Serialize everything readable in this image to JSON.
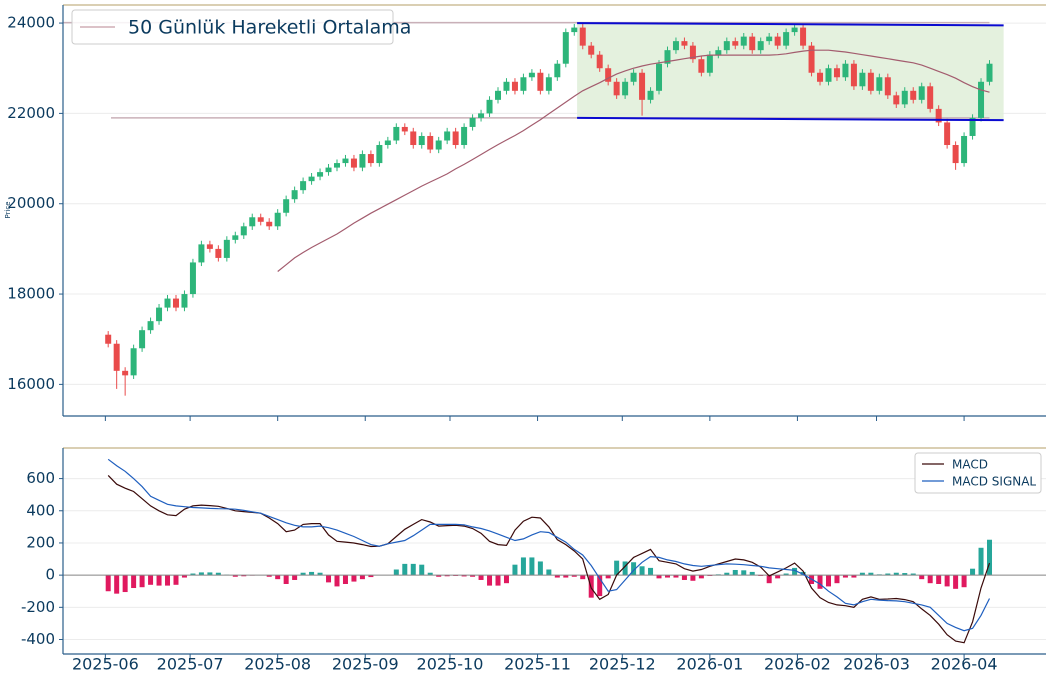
{
  "chart_data": [
    {
      "type": "candlestick",
      "ylabel": "Price",
      "x": [
        1,
        4,
        7,
        10,
        13,
        16,
        19,
        22,
        25,
        28,
        31,
        34,
        37,
        40,
        43,
        46,
        49,
        52,
        55,
        58,
        61,
        64,
        67,
        70,
        73,
        76,
        79,
        82,
        85,
        88,
        91,
        94,
        97,
        100,
        103,
        106,
        109,
        112,
        115,
        118,
        121,
        124,
        127,
        130,
        133,
        136,
        139,
        142,
        145,
        148,
        151,
        154,
        157,
        160,
        163,
        166,
        169,
        172,
        175,
        178,
        181,
        184,
        187,
        190,
        193,
        196,
        199,
        202,
        205,
        208,
        211,
        214,
        217,
        220,
        223,
        226,
        229,
        232,
        235,
        238,
        241,
        244,
        247,
        250,
        253,
        256,
        259,
        262,
        265,
        268,
        271,
        274,
        277,
        280,
        283,
        286,
        289,
        292,
        295,
        298,
        301,
        304,
        307,
        310,
        313
      ],
      "open": [
        17100,
        16900,
        16300,
        16200,
        16800,
        17200,
        17400,
        17700,
        17900,
        17700,
        18000,
        18700,
        19100,
        19000,
        18800,
        19200,
        19300,
        19500,
        19700,
        19600,
        19500,
        19800,
        20100,
        20300,
        20500,
        20600,
        20700,
        20800,
        20900,
        21000,
        20800,
        21100,
        20900,
        21300,
        21400,
        21700,
        21600,
        21300,
        21500,
        21200,
        21400,
        21600,
        21300,
        21700,
        21900,
        22000,
        22300,
        22500,
        22700,
        22500,
        22800,
        22900,
        22500,
        22800,
        23100,
        23800,
        23900,
        23500,
        23300,
        23000,
        22700,
        22400,
        22700,
        22900,
        22300,
        22500,
        23100,
        23400,
        23600,
        23500,
        23200,
        22900,
        23300,
        23400,
        23600,
        23500,
        23700,
        23400,
        23600,
        23700,
        23500,
        23800,
        23900,
        23500,
        22900,
        22700,
        23000,
        22800,
        23100,
        22600,
        22900,
        22500,
        22800,
        22400,
        22200,
        22500,
        22300,
        22600,
        22100,
        21800,
        21300,
        20900,
        21500,
        21900,
        22700
      ],
      "high": [
        17180,
        16980,
        16380,
        16880,
        17280,
        17480,
        17780,
        17980,
        17980,
        18080,
        18780,
        19180,
        19180,
        19080,
        19280,
        19380,
        19580,
        19780,
        19780,
        19680,
        19880,
        20180,
        20380,
        20580,
        20680,
        20780,
        20880,
        20980,
        21080,
        21080,
        21180,
        21180,
        21380,
        21480,
        21780,
        21780,
        21680,
        21580,
        21580,
        21480,
        21680,
        21680,
        21780,
        21980,
        22080,
        22380,
        22580,
        22780,
        22780,
        22880,
        22980,
        22980,
        22880,
        23180,
        23880,
        23980,
        23980,
        23580,
        23380,
        23080,
        22780,
        22780,
        22980,
        22980,
        22580,
        23180,
        23480,
        23680,
        23680,
        23580,
        23280,
        23380,
        23480,
        23680,
        23680,
        23780,
        23780,
        23680,
        23780,
        23780,
        23880,
        23980,
        23980,
        23580,
        22980,
        23080,
        23080,
        23180,
        23180,
        22980,
        22980,
        22880,
        22880,
        22480,
        22580,
        22580,
        22680,
        22680,
        22180,
        21880,
        21380,
        21580,
        21980,
        22780,
        23180
      ],
      "low": [
        16820,
        15900,
        15750,
        16120,
        16720,
        17120,
        17320,
        17620,
        17620,
        17620,
        17920,
        18620,
        18920,
        18720,
        18720,
        19120,
        19220,
        19420,
        19520,
        19420,
        19420,
        19720,
        20020,
        20220,
        20420,
        20520,
        20620,
        20720,
        20820,
        20720,
        20720,
        20820,
        20820,
        21220,
        21320,
        21520,
        21220,
        21220,
        21120,
        21120,
        21320,
        21220,
        21220,
        21620,
        21820,
        21920,
        22220,
        22420,
        22420,
        22420,
        22720,
        22420,
        22420,
        22720,
        23020,
        23720,
        23420,
        23220,
        22920,
        22620,
        22320,
        22320,
        22620,
        21950,
        22220,
        22420,
        23020,
        23320,
        23420,
        23120,
        22820,
        22820,
        23220,
        23320,
        23420,
        23420,
        23320,
        23320,
        23520,
        23420,
        23420,
        23720,
        23420,
        22820,
        22620,
        22620,
        22720,
        22720,
        22520,
        22520,
        22420,
        22420,
        22320,
        22120,
        22120,
        22220,
        22220,
        22020,
        21720,
        21220,
        20750,
        20820,
        21420,
        21820,
        22620
      ],
      "close": [
        16900,
        16300,
        16200,
        16800,
        17200,
        17400,
        17700,
        17900,
        17700,
        18000,
        18700,
        19100,
        19000,
        18800,
        19200,
        19300,
        19500,
        19700,
        19600,
        19500,
        19800,
        20100,
        20300,
        20500,
        20600,
        20700,
        20800,
        20900,
        21000,
        20800,
        21100,
        20900,
        21300,
        21400,
        21700,
        21600,
        21300,
        21500,
        21200,
        21400,
        21600,
        21300,
        21700,
        21900,
        22000,
        22300,
        22500,
        22700,
        22500,
        22800,
        22900,
        22500,
        22800,
        23100,
        23800,
        23900,
        23500,
        23300,
        23000,
        22700,
        22400,
        22700,
        22900,
        22300,
        22500,
        23100,
        23400,
        23600,
        23500,
        23200,
        22900,
        23300,
        23400,
        23600,
        23500,
        23700,
        23400,
        23600,
        23700,
        23500,
        23800,
        23900,
        23500,
        22900,
        22700,
        23000,
        22800,
        23100,
        22600,
        22900,
        22500,
        22800,
        22400,
        22200,
        22500,
        22300,
        22600,
        22100,
        21800,
        21300,
        20900,
        21500,
        21900,
        22700,
        23100
      ],
      "up_color": "#2db57a",
      "down_color": "#e94b4b",
      "series": [
        {
          "name": "50 Günlük Hareketli Ortalama",
          "color": "#a35c6e",
          "values": [
            null,
            null,
            null,
            null,
            null,
            null,
            null,
            null,
            null,
            null,
            null,
            null,
            null,
            null,
            null,
            null,
            null,
            null,
            null,
            null,
            18500,
            18650,
            18800,
            18920,
            19030,
            19130,
            19230,
            19330,
            19450,
            19570,
            19680,
            19790,
            19890,
            19990,
            20090,
            20190,
            20290,
            20390,
            20480,
            20570,
            20660,
            20770,
            20870,
            20980,
            21090,
            21200,
            21310,
            21410,
            21510,
            21620,
            21740,
            21860,
            21990,
            22120,
            22250,
            22380,
            22500,
            22590,
            22680,
            22780,
            22870,
            22940,
            23000,
            23050,
            23090,
            23120,
            23150,
            23180,
            23210,
            23240,
            23270,
            23290,
            23290,
            23290,
            23290,
            23290,
            23290,
            23290,
            23290,
            23300,
            23320,
            23350,
            23380,
            23400,
            23400,
            23400,
            23380,
            23360,
            23330,
            23300,
            23270,
            23240,
            23210,
            23180,
            23150,
            23120,
            23070,
            23000,
            22930,
            22860,
            22780,
            22680,
            22590,
            22520,
            22470
          ]
        }
      ],
      "hlines": [
        {
          "y": 24010,
          "x": [
            -15,
            313
          ],
          "color": "#c9b0b8"
        },
        {
          "y": 21900,
          "x": [
            2,
            313
          ],
          "color": "#c9b0b8"
        }
      ],
      "channel": {
        "x": [
          167,
          318
        ],
        "upper": [
          24000,
          23950
        ],
        "lower": [
          21900,
          21850
        ],
        "color": "#0a0ad0",
        "fill": "#dfeed8"
      },
      "xlim": [
        -15,
        333
      ],
      "xticks": [
        0,
        30,
        61,
        92,
        122,
        153,
        183,
        214,
        245,
        273,
        304
      ],
      "ylim": [
        15300,
        24400
      ],
      "yticks": [
        16000,
        18000,
        20000,
        22000,
        24000
      ],
      "grid": true
    },
    {
      "type": "macd",
      "x": [
        1,
        4,
        7,
        10,
        13,
        16,
        19,
        22,
        25,
        28,
        31,
        34,
        37,
        40,
        43,
        46,
        49,
        52,
        55,
        58,
        61,
        64,
        67,
        70,
        73,
        76,
        79,
        82,
        85,
        88,
        91,
        94,
        97,
        100,
        103,
        106,
        109,
        112,
        115,
        118,
        121,
        124,
        127,
        130,
        133,
        136,
        139,
        142,
        145,
        148,
        151,
        154,
        157,
        160,
        163,
        166,
        169,
        172,
        175,
        178,
        181,
        184,
        187,
        190,
        193,
        196,
        199,
        202,
        205,
        208,
        211,
        214,
        217,
        220,
        223,
        226,
        229,
        232,
        235,
        238,
        241,
        244,
        247,
        250,
        253,
        256,
        259,
        262,
        265,
        268,
        271,
        274,
        277,
        280,
        283,
        286,
        289,
        292,
        295,
        298,
        301,
        304,
        307,
        310,
        313
      ],
      "series": [
        {
          "name": "MACD",
          "color": "#3a0a0a",
          "values": [
            620,
            565,
            540,
            520,
            475,
            430,
            400,
            375,
            370,
            410,
            430,
            435,
            432,
            428,
            415,
            400,
            395,
            390,
            385,
            355,
            320,
            270,
            280,
            315,
            320,
            320,
            250,
            210,
            205,
            200,
            190,
            178,
            180,
            195,
            240,
            285,
            315,
            345,
            330,
            305,
            308,
            310,
            305,
            290,
            260,
            210,
            190,
            185,
            280,
            335,
            360,
            355,
            300,
            220,
            190,
            150,
            100,
            -80,
            -150,
            -120,
            0,
            55,
            110,
            135,
            160,
            90,
            80,
            70,
            40,
            25,
            35,
            55,
            70,
            85,
            100,
            95,
            80,
            50,
            -5,
            20,
            45,
            75,
            25,
            -80,
            -140,
            -170,
            -185,
            -190,
            -200,
            -150,
            -135,
            -150,
            -148,
            -145,
            -152,
            -165,
            -210,
            -250,
            -305,
            -370,
            -410,
            -420,
            -290,
            -80,
            75
          ]
        },
        {
          "name": "MACD SIGNAL",
          "color": "#1f5fbf",
          "values": [
            720,
            680,
            645,
            600,
            550,
            490,
            465,
            440,
            430,
            425,
            420,
            418,
            415,
            413,
            412,
            410,
            402,
            393,
            385,
            365,
            345,
            325,
            310,
            300,
            300,
            305,
            295,
            280,
            260,
            240,
            215,
            190,
            180,
            195,
            205,
            215,
            245,
            280,
            315,
            315,
            315,
            315,
            313,
            300,
            290,
            275,
            255,
            235,
            215,
            225,
            250,
            270,
            265,
            235,
            205,
            160,
            125,
            60,
            -20,
            -100,
            -90,
            -30,
            30,
            80,
            115,
            110,
            95,
            85,
            70,
            60,
            55,
            60,
            65,
            70,
            68,
            65,
            60,
            55,
            45,
            40,
            35,
            30,
            5,
            -25,
            -55,
            -100,
            -135,
            -175,
            -185,
            -165,
            -150,
            -155,
            -158,
            -160,
            -165,
            -175,
            -185,
            -200,
            -250,
            -300,
            -325,
            -345,
            -330,
            -250,
            -145
          ]
        }
      ],
      "histogram": {
        "up_color": "#26a69a",
        "down_color": "#e0195f",
        "values": [
          -100,
          -115,
          -105,
          -80,
          -75,
          -60,
          -65,
          -65,
          -60,
          -15,
          10,
          17,
          17,
          15,
          3,
          -10,
          -7,
          -3,
          0,
          -10,
          -25,
          -55,
          -30,
          15,
          20,
          15,
          -45,
          -70,
          -55,
          -40,
          -25,
          -12,
          0,
          0,
          35,
          70,
          70,
          65,
          15,
          -10,
          -7,
          -5,
          -8,
          -10,
          -30,
          -65,
          -65,
          -50,
          65,
          110,
          110,
          85,
          35,
          -15,
          -15,
          -10,
          -25,
          -140,
          -130,
          -20,
          90,
          85,
          80,
          55,
          45,
          -20,
          -15,
          -15,
          -30,
          -35,
          -20,
          -5,
          5,
          15,
          32,
          30,
          20,
          -5,
          -50,
          -20,
          10,
          45,
          20,
          -55,
          -85,
          -70,
          -50,
          -15,
          -15,
          15,
          15,
          5,
          10,
          15,
          13,
          10,
          -25,
          -50,
          -55,
          -70,
          -85,
          -75,
          40,
          170,
          220
        ]
      },
      "legend": "upper right",
      "xlim": [
        -15,
        333
      ],
      "xticks": [
        {
          "value": 0,
          "label": "2025-06"
        },
        {
          "value": 30,
          "label": "2025-07"
        },
        {
          "value": 61,
          "label": "2025-08"
        },
        {
          "value": 92,
          "label": "2025-09"
        },
        {
          "value": 122,
          "label": "2025-10"
        },
        {
          "value": 153,
          "label": "2025-11"
        },
        {
          "value": 183,
          "label": "2025-12"
        },
        {
          "value": 214,
          "label": "2026-01"
        },
        {
          "value": 245,
          "label": "2026-02"
        },
        {
          "value": 273,
          "label": "2026-03"
        },
        {
          "value": 304,
          "label": "2026-04"
        }
      ],
      "ylim": [
        -490,
        790
      ],
      "yticks": [
        -400,
        -200,
        0,
        200,
        400,
        600
      ],
      "grid": true
    }
  ]
}
